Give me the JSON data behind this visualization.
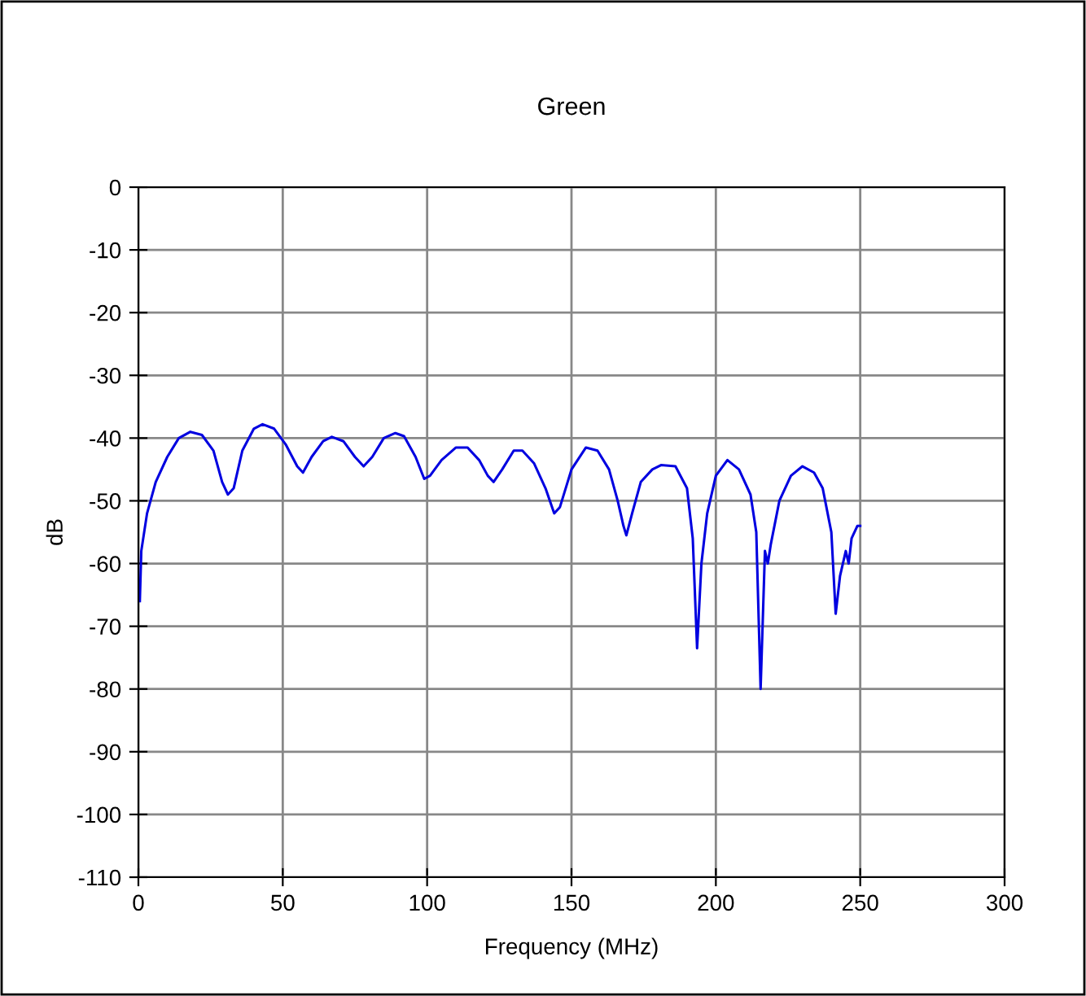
{
  "chart_data": {
    "type": "line",
    "title": "Green",
    "xlabel": "Frequency (MHz)",
    "ylabel": "dB",
    "xlim": [
      0,
      300
    ],
    "xticks": [
      0,
      50,
      100,
      150,
      200,
      250,
      300
    ],
    "ylim": [
      -110,
      0
    ],
    "yticks": [
      -110,
      -100,
      -90,
      -80,
      -70,
      -60,
      -50,
      -40,
      -30,
      -20,
      -10,
      0
    ],
    "grid": true,
    "series": [
      {
        "color": "#0000e0",
        "x": [
          0.5,
          1,
          3,
          6,
          10,
          14,
          18,
          22,
          26,
          29,
          31,
          33,
          36,
          40,
          43,
          47,
          51,
          55,
          57,
          60,
          64,
          67,
          71,
          75,
          78,
          81,
          85,
          89,
          92,
          96,
          99,
          101,
          105,
          110,
          114,
          118,
          121,
          123,
          126,
          130,
          133,
          137,
          141,
          144,
          146,
          150,
          155,
          159,
          163,
          166,
          168,
          169,
          171,
          174,
          178,
          181,
          186,
          190,
          192,
          193.5,
          195,
          197,
          200,
          204,
          208,
          212,
          214,
          215.5,
          217,
          218,
          219,
          222,
          226,
          230,
          234,
          237,
          240,
          241.5,
          243,
          245,
          246,
          247,
          249,
          250
        ],
        "values": [
          -66,
          -58,
          -52,
          -47,
          -43,
          -40,
          -39,
          -39.5,
          -42,
          -47,
          -49,
          -48,
          -42,
          -38.5,
          -37.8,
          -38.5,
          -41,
          -44.5,
          -45.5,
          -43,
          -40.5,
          -39.8,
          -40.5,
          -43,
          -44.5,
          -43,
          -40,
          -39.2,
          -39.7,
          -43,
          -46.5,
          -46,
          -43.5,
          -41.5,
          -41.5,
          -43.5,
          -46,
          -47,
          -45,
          -42,
          -42,
          -44,
          -48,
          -52,
          -51,
          -45,
          -41.5,
          -42,
          -45,
          -50,
          -54,
          -55.5,
          -52,
          -47,
          -45,
          -44.3,
          -44.5,
          -48,
          -56,
          -73.5,
          -60,
          -52,
          -46,
          -43.5,
          -45,
          -49,
          -55,
          -80,
          -58,
          -60,
          -57,
          -50,
          -46,
          -44.5,
          -45.5,
          -48,
          -55,
          -68,
          -62,
          -58,
          -60,
          -56,
          -54,
          -54
        ]
      }
    ]
  }
}
